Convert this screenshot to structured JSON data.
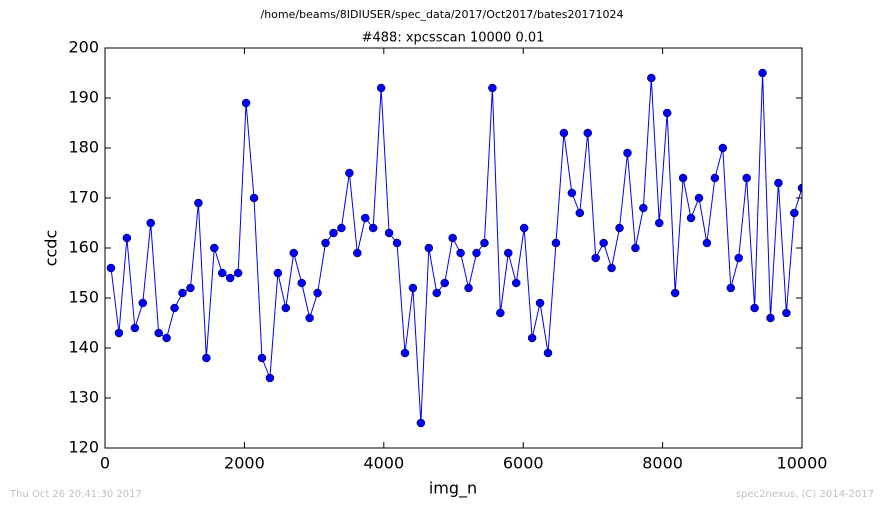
{
  "chart_data": {
    "type": "line",
    "suptitle": "/home/beams/8IDIUSER/spec_data/2017/Oct2017/bates20171024",
    "title": "#488: xpcsscan 10000 0.01",
    "x_label": "img_n",
    "y_label": "ccdc",
    "footer_left": "Thu Oct 26 20:41:30 2017",
    "footer_right": "spec2nexus, (C) 2014-2017",
    "xlim": [
      0,
      10000
    ],
    "xticks": [
      0,
      2000,
      4000,
      6000,
      8000,
      10000
    ],
    "ylim": [
      120,
      200
    ],
    "yticks": [
      120,
      130,
      140,
      150,
      160,
      170,
      180,
      190,
      200
    ],
    "grid": false,
    "x": [
      86,
      200,
      314,
      428,
      542,
      656,
      770,
      884,
      998,
      1112,
      1226,
      1340,
      1454,
      1568,
      1682,
      1796,
      1910,
      2024,
      2138,
      2252,
      2366,
      2480,
      2594,
      2708,
      2822,
      2936,
      3050,
      3164,
      3278,
      3392,
      3506,
      3620,
      3734,
      3848,
      3962,
      4076,
      4190,
      4304,
      4418,
      4532,
      4646,
      4760,
      4874,
      4988,
      5102,
      5216,
      5330,
      5444,
      5558,
      5672,
      5786,
      5900,
      6014,
      6128,
      6242,
      6356,
      6470,
      6584,
      6698,
      6812,
      6926,
      7040,
      7154,
      7268,
      7382,
      7496,
      7610,
      7724,
      7838,
      7952,
      8066,
      8180,
      8294,
      8408,
      8522,
      8636,
      8750,
      8864,
      8978,
      9092,
      9206,
      9320,
      9434,
      9548,
      9662,
      9776,
      9890,
      10000
    ],
    "series": [
      {
        "color": "#0000ff",
        "values": [
          156,
          143,
          162,
          144,
          149,
          165,
          143,
          142,
          148,
          151,
          152,
          169,
          138,
          160,
          155,
          154,
          155,
          189,
          170,
          138,
          134,
          155,
          148,
          159,
          153,
          146,
          151,
          161,
          163,
          164,
          175,
          159,
          166,
          164,
          192,
          163,
          161,
          139,
          152,
          125,
          160,
          151,
          153,
          162,
          159,
          152,
          159,
          161,
          192,
          147,
          159,
          153,
          164,
          142,
          149,
          139,
          161,
          183,
          171,
          167,
          183,
          158,
          161,
          156,
          164,
          179,
          160,
          168,
          194,
          165,
          187,
          151,
          174,
          166,
          170,
          161,
          174,
          180,
          152,
          158,
          174,
          148,
          195,
          146,
          173,
          147,
          167,
          172
        ]
      }
    ]
  }
}
